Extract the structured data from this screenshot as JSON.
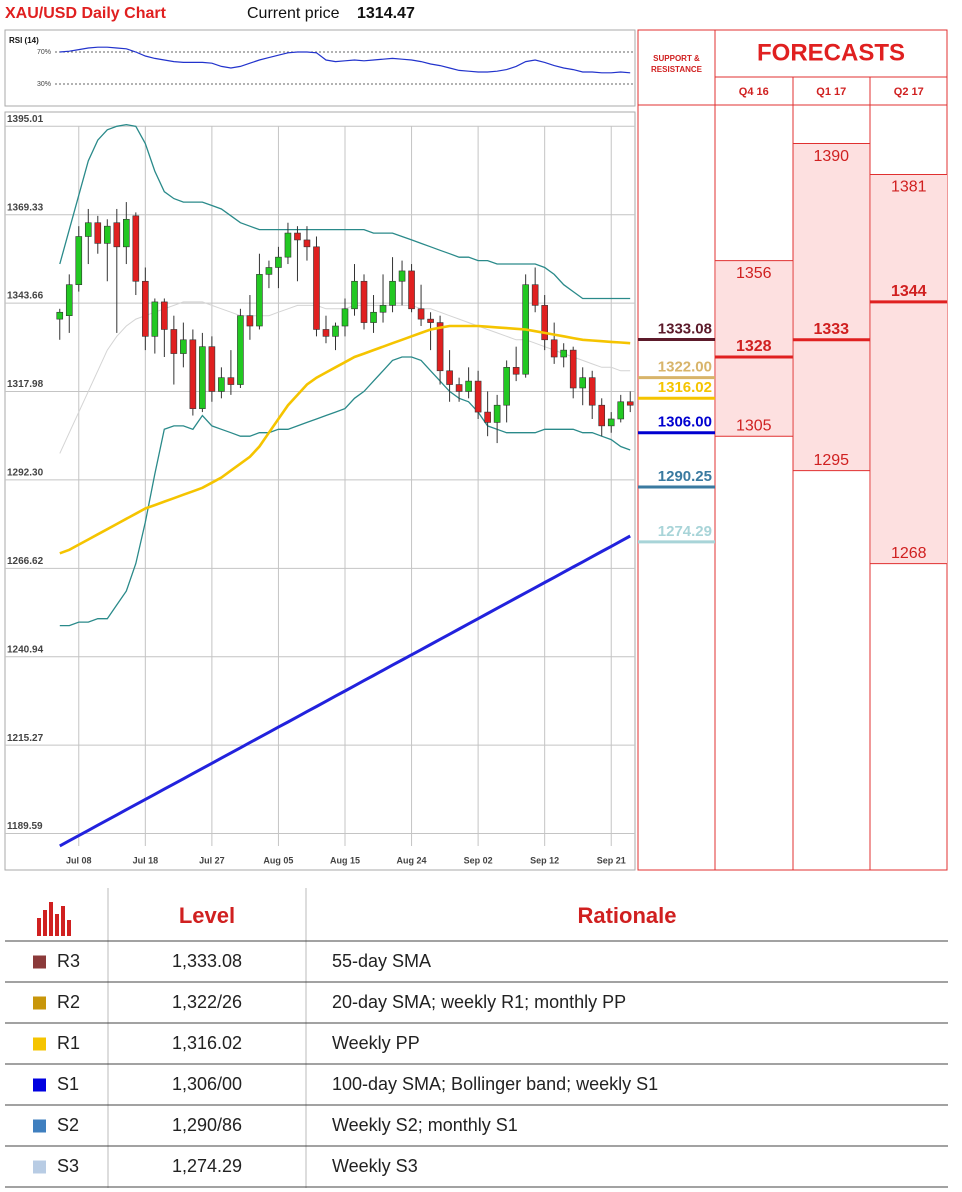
{
  "chart_data": {
    "type": "candlestick",
    "title": "XAU/USD Daily Chart",
    "current_price_label": "Current price",
    "current_price": 1314.47,
    "categories": [
      null,
      null,
      "Jul 08",
      null,
      null,
      null,
      null,
      null,
      null,
      "Jul 18",
      null,
      null,
      null,
      null,
      null,
      null,
      "Jul 27",
      null,
      null,
      null,
      null,
      null,
      null,
      "Aug 05",
      null,
      null,
      null,
      null,
      null,
      null,
      "Aug 15",
      null,
      null,
      null,
      null,
      null,
      null,
      "Aug 24",
      null,
      null,
      null,
      null,
      null,
      null,
      "Sep 02",
      null,
      null,
      null,
      null,
      null,
      null,
      "Sep 12",
      null,
      null,
      null,
      null,
      null,
      null,
      "Sep 21",
      null,
      null
    ],
    "open": [
      1339,
      1340,
      1349,
      1363,
      1367,
      1361,
      1367,
      1360,
      1369,
      1350,
      1334,
      1344,
      1336,
      1329,
      1333,
      1313,
      1331,
      1318,
      1322,
      1320,
      1340,
      1337,
      1352,
      1354,
      1357,
      1364,
      1362,
      1360,
      1336,
      1334,
      1337,
      1342,
      1350,
      1338,
      1341,
      1343,
      1350,
      1353,
      1342,
      1339,
      1338,
      1324,
      1320,
      1318,
      1321,
      1312,
      1309,
      1314,
      1325,
      1323,
      1349,
      1343,
      1333,
      1328,
      1330,
      1319,
      1322,
      1314,
      1308,
      1310,
      1315
    ],
    "high": [
      1342,
      1352,
      1366,
      1371,
      1369,
      1368,
      1371,
      1373,
      1370,
      1354,
      1345,
      1345,
      1340,
      1338,
      1336,
      1335,
      1334,
      1325,
      1330,
      1342,
      1346,
      1358,
      1356,
      1360,
      1367,
      1366,
      1366,
      1363,
      1340,
      1338,
      1345,
      1355,
      1352,
      1346,
      1352,
      1357,
      1356,
      1355,
      1349,
      1341,
      1340,
      1330,
      1322,
      1325,
      1324,
      1318,
      1317,
      1327,
      1331,
      1352,
      1354,
      1346,
      1338,
      1332,
      1331,
      1325,
      1324,
      1316,
      1312,
      1317,
      1318
    ],
    "low": [
      1333,
      1335,
      1347,
      1355,
      1358,
      1350,
      1335,
      1355,
      1346,
      1330,
      1329,
      1328,
      1320,
      1325,
      1311,
      1312,
      1315,
      1316,
      1317,
      1319,
      1333,
      1336,
      1348,
      1348,
      1355,
      1350,
      1356,
      1334,
      1332,
      1330,
      1334,
      1340,
      1336,
      1335,
      1338,
      1341,
      1343,
      1341,
      1337,
      1330,
      1320,
      1315,
      1315,
      1316,
      1310,
      1305,
      1303,
      1309,
      1321,
      1322,
      1341,
      1330,
      1326,
      1325,
      1316,
      1314,
      1310,
      1305,
      1306,
      1309,
      1312
    ],
    "close": [
      1341,
      1349,
      1363,
      1367,
      1361,
      1366,
      1360,
      1368,
      1350,
      1334,
      1344,
      1336,
      1329,
      1333,
      1313,
      1331,
      1318,
      1322,
      1320,
      1340,
      1337,
      1352,
      1354,
      1357,
      1364,
      1362,
      1360,
      1336,
      1334,
      1337,
      1342,
      1350,
      1338,
      1341,
      1343,
      1350,
      1353,
      1342,
      1339,
      1338,
      1324,
      1320,
      1318,
      1321,
      1312,
      1309,
      1314,
      1325,
      1323,
      1349,
      1343,
      1333,
      1328,
      1330,
      1319,
      1322,
      1314,
      1308,
      1310,
      1315,
      1314
    ],
    "up_color": "#22c822",
    "down_color": "#e02020",
    "series": [
      {
        "color": "#d4d4d4",
        "values": [
          1300,
          1306,
          1312,
          1318,
          1324,
          1330,
          1334,
          1337,
          1339,
          1340,
          1341,
          1342,
          1343,
          1344,
          1344,
          1344,
          1343,
          1342,
          1341,
          1340,
          1340,
          1340,
          1340,
          1341,
          1342,
          1343,
          1343,
          1343,
          1342,
          1342,
          1342,
          1343,
          1343,
          1343,
          1343,
          1343,
          1343,
          1343,
          1342,
          1342,
          1341,
          1340,
          1339,
          1338,
          1337,
          1336,
          1335,
          1334,
          1333,
          1333,
          1332,
          1331,
          1330,
          1329,
          1328,
          1327,
          1326,
          1325,
          1325,
          1324,
          1324
        ]
      },
      {
        "color": "#2a8a8a",
        "values": [
          1355,
          1365,
          1375,
          1385,
          1391,
          1394,
          1395,
          1395.5,
          1395,
          1390,
          1382,
          1376,
          1374,
          1373,
          1373,
          1373,
          1372,
          1371,
          1369,
          1367,
          1366,
          1365,
          1365,
          1365,
          1365,
          1365,
          1365,
          1365,
          1365,
          1365,
          1365,
          1365,
          1365,
          1364,
          1364,
          1364,
          1363,
          1362,
          1361,
          1360,
          1359,
          1358,
          1357,
          1357,
          1356,
          1356,
          1355,
          1355,
          1355,
          1355,
          1355,
          1354,
          1352,
          1349,
          1347,
          1345,
          1345,
          1345,
          1345,
          1345,
          1345
        ]
      },
      {
        "color": "#2a8a8a",
        "values": [
          1250,
          1250,
          1251,
          1251,
          1252,
          1252,
          1256,
          1260,
          1268,
          1280,
          1294,
          1307,
          1308,
          1308,
          1307,
          1311,
          1308,
          1307,
          1306,
          1305,
          1305,
          1306,
          1306,
          1307,
          1307,
          1308,
          1309,
          1310,
          1311,
          1312,
          1313,
          1316,
          1318,
          1321,
          1324,
          1327,
          1328,
          1328,
          1327,
          1324,
          1321,
          1318,
          1316,
          1315,
          1312,
          1308,
          1307,
          1306,
          1306,
          1306,
          1306,
          1307,
          1307,
          1307,
          1307,
          1306,
          1306,
          1305,
          1304,
          1302,
          1301
        ]
      },
      {
        "color": "#f5c400",
        "values": [
          1271,
          1272,
          1273.5,
          1275,
          1276.5,
          1278,
          1279.5,
          1281,
          1282.5,
          1284,
          1285,
          1286,
          1287,
          1288,
          1289,
          1290,
          1291.5,
          1293,
          1295,
          1297,
          1299,
          1302,
          1306,
          1310,
          1314,
          1317,
          1320,
          1322,
          1323.5,
          1325,
          1326.5,
          1328,
          1329,
          1330,
          1331,
          1332,
          1333,
          1334,
          1335,
          1336,
          1336.5,
          1337,
          1337,
          1337,
          1337,
          1336.8,
          1336.6,
          1336.4,
          1336.2,
          1336,
          1335.5,
          1335,
          1334.5,
          1334,
          1333.5,
          1333,
          1332.8,
          1332.6,
          1332.4,
          1332.2,
          1332
        ]
      },
      {
        "color": "#2222dd",
        "values": [
          1186,
          1187.5,
          1189,
          1190.5,
          1192,
          1193.5,
          1195,
          1196.5,
          1198,
          1199.5,
          1201,
          1202.5,
          1204,
          1205.5,
          1207,
          1208.5,
          1210,
          1211.5,
          1213,
          1214.5,
          1216,
          1217.5,
          1219,
          1220.5,
          1222,
          1223.5,
          1225,
          1226.5,
          1228,
          1229.5,
          1231,
          1232.5,
          1234,
          1235.5,
          1237,
          1238.5,
          1240,
          1241.5,
          1243,
          1244.5,
          1246,
          1247.5,
          1249,
          1250.5,
          1252,
          1253.5,
          1255,
          1256.5,
          1258,
          1259.5,
          1261,
          1262.5,
          1264,
          1265.5,
          1267,
          1268.5,
          1270,
          1271.5,
          1273,
          1274.5,
          1276
        ]
      }
    ],
    "ylim": [
      1179,
      1398
    ],
    "yticks": [
      1395.01,
      1369.33,
      1343.66,
      1317.98,
      {
        "value": 1292.3,
        "label": "1292.30"
      },
      1266.62,
      1240.94,
      1215.27,
      1189.59
    ],
    "grid": true,
    "rsi": {
      "title": "RSI (14)",
      "color": "#2233cc",
      "ylim": [
        0,
        100
      ],
      "yticks": [
        {
          "value": 70,
          "label": "70%"
        },
        {
          "value": 30,
          "label": "30%"
        }
      ],
      "values": [
        70,
        71,
        73,
        75,
        76,
        76,
        75,
        74,
        70,
        65,
        62,
        60,
        58,
        57,
        57,
        57,
        56,
        52,
        50,
        52,
        56,
        60,
        63,
        66,
        69,
        70,
        70,
        69,
        60,
        58,
        59,
        60,
        59,
        60,
        61,
        62,
        61,
        60,
        58,
        55,
        53,
        50,
        47,
        46,
        45,
        45,
        46,
        48,
        52,
        58,
        60,
        57,
        53,
        50,
        48,
        45,
        45,
        44,
        44,
        45,
        44
      ]
    }
  },
  "support_resistance": {
    "title": "SUPPORT & RESISTANCE",
    "values": [
      1333.08,
      1322,
      1316.02,
      1306,
      1290.25,
      1274.29
    ],
    "value_labels": [
      "1333.08",
      "1322.00",
      "1316.02",
      "1306.00",
      "1290.25",
      "1274.29"
    ],
    "colors": [
      "#5c1a2a",
      "#d8b46a",
      "#f5c400",
      "#0000d0",
      "#3a7aa0",
      "#a8d4d8"
    ]
  },
  "forecasts": {
    "title": "FORECASTS",
    "quarters": [
      {
        "label": "Q4 16",
        "high": 1356,
        "mid": 1328,
        "low": 1305
      },
      {
        "label": "Q1 17",
        "high": 1390,
        "mid": 1333,
        "low": 1295
      },
      {
        "label": "Q2 17",
        "high": 1381,
        "mid": 1344,
        "low": 1268
      }
    ]
  },
  "table": {
    "headers": [
      "Level",
      "Rationale"
    ],
    "rows": [
      {
        "name": "R3",
        "color": "#8b3a3a",
        "level": "1,333.08",
        "rationale": "55-day SMA"
      },
      {
        "name": "R2",
        "color": "#c8960a",
        "level": "1,322/26",
        "rationale": "20-day SMA; weekly R1; monthly PP"
      },
      {
        "name": "R1",
        "color": "#f5c400",
        "level": "1,316.02",
        "rationale": "Weekly PP"
      },
      {
        "name": "S1",
        "color": "#0000e0",
        "level": "1,306/00",
        "rationale": "100-day SMA; Bollinger band; weekly S1"
      },
      {
        "name": "S2",
        "color": "#3f7fbf",
        "level": "1,290/86",
        "rationale": "Weekly S2; monthly S1"
      },
      {
        "name": "S3",
        "color": "#b8cce4",
        "level": "1,274.29",
        "rationale": "Weekly S3"
      }
    ]
  }
}
